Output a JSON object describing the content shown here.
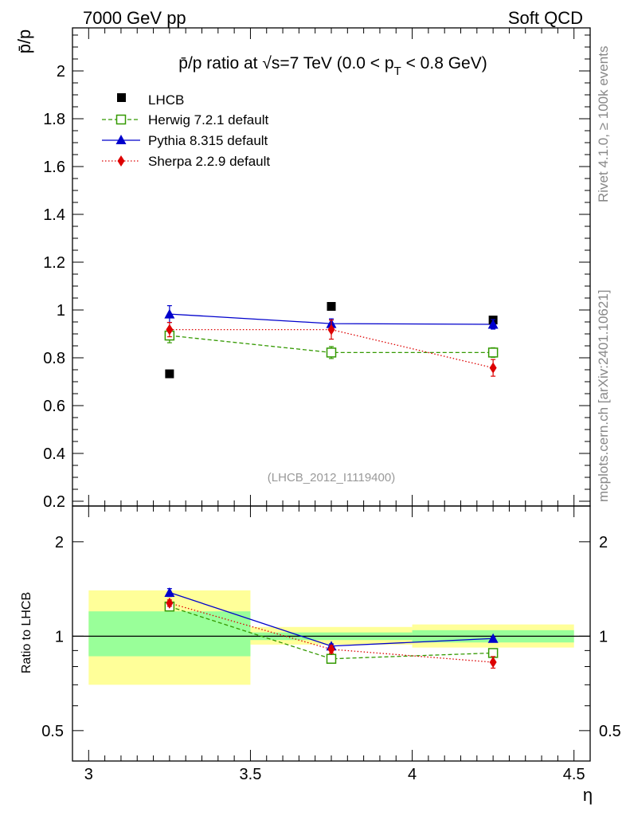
{
  "header": {
    "left": "7000 GeV pp",
    "right": "Soft QCD"
  },
  "side_labels": {
    "rivet": "Rivet 4.1.0, ≥ 100k events",
    "mcplots": "mcplots.cern.ch [arXiv:2401.10621]"
  },
  "chart_data": [
    {
      "type": "scatter",
      "title_parts": {
        "prefix": "p̄/p ratio at √s=7 TeV (0.0 < p",
        "subscript": "T",
        "suffix": " < 0.8 GeV)"
      },
      "ylabel": "p̄/p",
      "ylim": [
        0.18,
        2.18
      ],
      "yticks": [
        0.2,
        0.4,
        0.6,
        0.8,
        1,
        1.2,
        1.4,
        1.6,
        1.8,
        2
      ],
      "ytick_labels": [
        "0.2",
        "0.4",
        "0.6",
        "0.8",
        "1",
        "1.2",
        "1.4",
        "1.6",
        "1.8",
        "2"
      ],
      "xlim": [
        2.95,
        4.55
      ],
      "watermark": "(LHCB_2012_I1119400)",
      "legend_position": "top-left",
      "series": [
        {
          "name": "LHCB",
          "key": "lhcb",
          "color": "#000000",
          "marker": "square-filled",
          "line": "none",
          "x": [
            3.25,
            3.75,
            4.25
          ],
          "y": [
            0.733,
            1.015,
            0.958
          ],
          "err": [
            0.0,
            0.0,
            0.0
          ]
        },
        {
          "name": "Herwig 7.2.1 default",
          "key": "herwig",
          "color": "#339900",
          "marker": "square-open",
          "line": "dashed",
          "x": [
            3.25,
            3.75,
            4.25
          ],
          "y": [
            0.893,
            0.822,
            0.822
          ],
          "err": [
            0.03,
            0.025,
            0.02
          ]
        },
        {
          "name": "Pythia 8.315 default",
          "key": "pythia",
          "color": "#0000cc",
          "marker": "triangle",
          "line": "solid",
          "x": [
            3.25,
            3.75,
            4.25
          ],
          "y": [
            0.983,
            0.943,
            0.94
          ],
          "err": [
            0.035,
            0.02,
            0.02
          ]
        },
        {
          "name": "Sherpa 2.2.9 default",
          "key": "sherpa",
          "color": "#dd0000",
          "marker": "diamond",
          "line": "dotted",
          "x": [
            3.25,
            3.75,
            4.25
          ],
          "y": [
            0.918,
            0.918,
            0.758
          ],
          "err": [
            0.03,
            0.04,
            0.035
          ]
        }
      ]
    },
    {
      "type": "scatter",
      "ylabel": "Ratio to LHCB",
      "xlabel": "η",
      "yscale": "log",
      "ylim": [
        0.4,
        2.6
      ],
      "yticks": [
        0.5,
        1,
        2
      ],
      "ytick_labels": [
        "0.5",
        "1",
        "2"
      ],
      "xlim": [
        2.95,
        4.55
      ],
      "xticks": [
        3,
        3.5,
        4,
        4.5
      ],
      "xtick_labels": [
        "3",
        "3.5",
        "4",
        "4.5"
      ],
      "bands": [
        {
          "x0": 3.0,
          "x1": 3.5,
          "stat": [
            0.863,
            1.2
          ],
          "total": [
            0.7,
            1.4
          ]
        },
        {
          "x0": 3.5,
          "x1": 4.0,
          "stat": [
            0.972,
            1.028
          ],
          "total": [
            0.94,
            1.07
          ]
        },
        {
          "x0": 4.0,
          "x1": 4.5,
          "stat": [
            0.955,
            1.045
          ],
          "total": [
            0.92,
            1.09
          ]
        }
      ],
      "series": [
        {
          "name": "Herwig 7.2.1 default",
          "key": "herwig",
          "x": [
            3.25,
            3.75,
            4.25
          ],
          "y": [
            1.243,
            0.847,
            0.884
          ],
          "err": [
            0.03,
            0.02,
            0.015
          ]
        },
        {
          "name": "Pythia 8.315 default",
          "key": "pythia",
          "x": [
            3.25,
            3.75,
            4.25
          ],
          "y": [
            1.378,
            0.93,
            0.983
          ],
          "err": [
            0.04,
            0.015,
            0.01
          ]
        },
        {
          "name": "Sherpa 2.2.9 default",
          "key": "sherpa",
          "x": [
            3.25,
            3.75,
            4.25
          ],
          "y": [
            1.275,
            0.908,
            0.826
          ],
          "err": [
            0.03,
            0.025,
            0.035
          ]
        }
      ]
    }
  ]
}
